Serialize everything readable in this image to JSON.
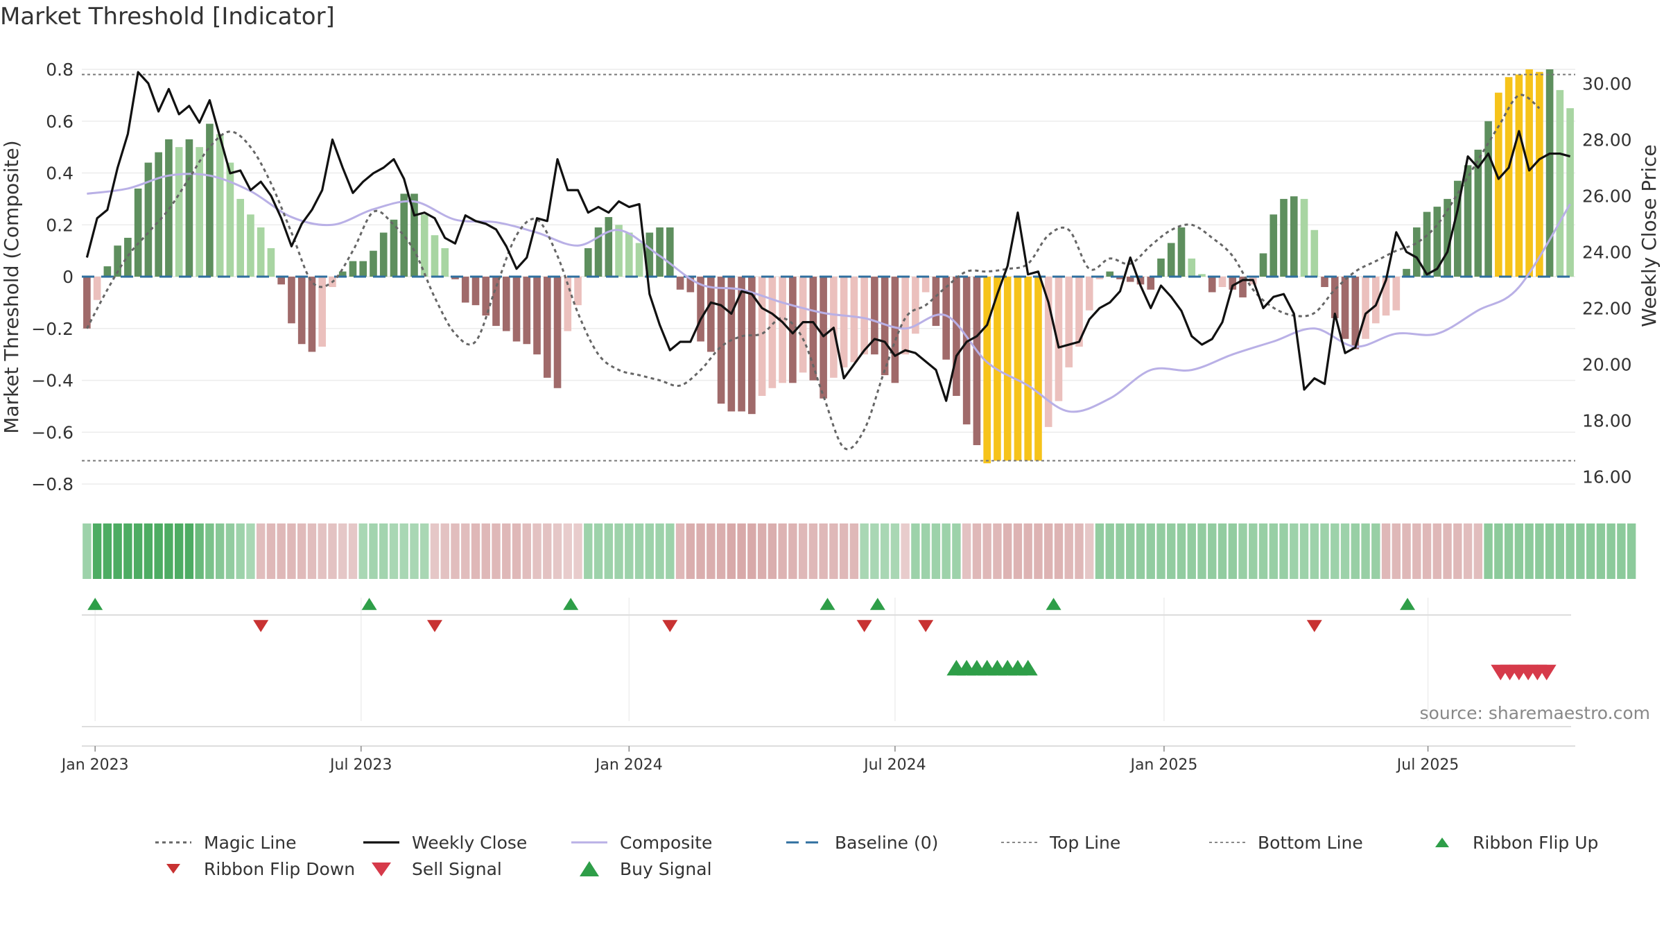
{
  "title": "Market Threshold [Indicator]",
  "source": "source: sharemaestro.com",
  "chart_data": {
    "type": "bar",
    "title": "Market Threshold [Indicator]",
    "ylabel_left": "Market Threshold (Composite)",
    "ylabel_right": "Weekly Close Price",
    "ylim_left": [
      -0.88,
      0.8
    ],
    "ylim_right": [
      15.0,
      30.5
    ],
    "yticks_left": [
      "0.8",
      "0.6",
      "0.4",
      "0.2",
      "0",
      "−0.2",
      "−0.4",
      "−0.6",
      "−0.8"
    ],
    "yticks_left_values": [
      0.8,
      0.6,
      0.4,
      0.2,
      0,
      -0.2,
      -0.4,
      -0.6,
      -0.8
    ],
    "yticks_right": [
      "30.00",
      "28.00",
      "26.00",
      "24.00",
      "22.00",
      "20.00",
      "18.00",
      "16.00"
    ],
    "yticks_right_values": [
      30,
      28,
      26,
      24,
      22,
      20,
      18,
      16
    ],
    "xticks": [
      "Jan 2023",
      "Jul 2023",
      "Jan 2024",
      "Jul 2024",
      "Jan 2025",
      "Jul 2025"
    ],
    "xticks_week_index": [
      0.8,
      26.8,
      53,
      79,
      105.3,
      131.1
    ],
    "top_line": 0.78,
    "bottom_line": -0.71,
    "grid": true,
    "legend_placement": "bottom",
    "colors": {
      "strong_pos": "#5e8f5e",
      "weak_pos": "#a8d5a2",
      "strong_neg": "#a06a6a",
      "weak_neg": "#ebc0bd",
      "extreme": "#f6c31a",
      "weekly_close": "#111111",
      "composite": "#b9b0e6",
      "magic": "#666666",
      "baseline": "#2f6f9f",
      "buy": "#2e9e48",
      "sell": "#d63a4a",
      "flip_down": "#c83232"
    },
    "histogram": [
      -0.2,
      -0.09,
      0.04,
      0.12,
      0.15,
      0.34,
      0.44,
      0.48,
      0.53,
      0.5,
      0.53,
      0.5,
      0.59,
      0.55,
      0.44,
      0.3,
      0.24,
      0.19,
      0.11,
      -0.03,
      -0.18,
      -0.26,
      -0.29,
      -0.27,
      -0.04,
      0.02,
      0.06,
      0.06,
      0.1,
      0.17,
      0.22,
      0.32,
      0.32,
      0.24,
      0.16,
      0.11,
      -0.01,
      -0.1,
      -0.11,
      -0.15,
      -0.19,
      -0.21,
      -0.25,
      -0.26,
      -0.3,
      -0.39,
      -0.43,
      -0.21,
      -0.11,
      0.11,
      0.19,
      0.23,
      0.2,
      0.17,
      0.13,
      0.17,
      0.19,
      0.19,
      -0.05,
      -0.06,
      -0.25,
      -0.29,
      -0.49,
      -0.52,
      -0.52,
      -0.53,
      -0.46,
      -0.43,
      -0.41,
      -0.41,
      -0.37,
      -0.4,
      -0.47,
      -0.39,
      -0.35,
      -0.33,
      -0.3,
      -0.3,
      -0.38,
      -0.41,
      -0.3,
      -0.22,
      -0.06,
      -0.19,
      -0.32,
      -0.46,
      -0.57,
      -0.65,
      -0.72,
      -0.71,
      -0.71,
      -0.71,
      -0.71,
      -0.71,
      -0.58,
      -0.48,
      -0.35,
      -0.27,
      -0.13,
      -0.01,
      0.02,
      -0.01,
      -0.02,
      -0.03,
      -0.05,
      0.07,
      0.13,
      0.19,
      0.07,
      0.01,
      -0.06,
      -0.04,
      -0.05,
      -0.08,
      -0.03,
      0.09,
      0.24,
      0.3,
      0.31,
      0.3,
      0.18,
      -0.04,
      -0.16,
      -0.24,
      -0.28,
      -0.24,
      -0.18,
      -0.15,
      -0.13,
      0.03,
      0.19,
      0.25,
      0.27,
      0.3,
      0.37,
      0.43,
      0.49,
      0.6,
      0.71,
      0.77,
      0.78,
      0.8,
      0.79,
      0.8,
      0.72,
      0.65
    ],
    "series": [
      {
        "name": "Magic Line",
        "axis": "left",
        "x": [
          0,
          2,
          4,
          6,
          8,
          10,
          12,
          14,
          16,
          18,
          20,
          22,
          24,
          26,
          28,
          30,
          32,
          34,
          36,
          38,
          40,
          42,
          44,
          46,
          48,
          50,
          52,
          54,
          56,
          58,
          60,
          62,
          64,
          66,
          68,
          70,
          72,
          74,
          76,
          78,
          80,
          82,
          84,
          86,
          88,
          90,
          92,
          94,
          96,
          98,
          100,
          102,
          104,
          106,
          108,
          110,
          112,
          114,
          116,
          118,
          120,
          122,
          124,
          126,
          128,
          130,
          132,
          134,
          136,
          138,
          140,
          142
        ],
        "values": [
          -0.2,
          -0.05,
          0.08,
          0.17,
          0.26,
          0.38,
          0.5,
          0.56,
          0.5,
          0.36,
          0.17,
          -0.02,
          -0.02,
          0.1,
          0.25,
          0.2,
          0.1,
          -0.08,
          -0.22,
          -0.25,
          -0.04,
          0.16,
          0.22,
          0.08,
          -0.14,
          -0.3,
          -0.36,
          -0.38,
          -0.4,
          -0.42,
          -0.36,
          -0.27,
          -0.23,
          -0.22,
          -0.16,
          -0.24,
          -0.46,
          -0.66,
          -0.59,
          -0.36,
          -0.16,
          -0.11,
          -0.04,
          0.02,
          0.02,
          0.03,
          0.05,
          0.16,
          0.18,
          0.03,
          0.07,
          0.05,
          0.12,
          0.18,
          0.2,
          0.15,
          0.08,
          -0.05,
          -0.12,
          -0.15,
          -0.14,
          -0.05,
          0.02,
          0.06,
          0.1,
          0.13,
          0.2,
          0.32,
          0.45,
          0.58,
          0.7,
          0.65
        ]
      },
      {
        "name": "Weekly Close",
        "axis": "right",
        "x": [
          0,
          1,
          2,
          3,
          4,
          5,
          6,
          7,
          8,
          9,
          10,
          11,
          12,
          13,
          14,
          15,
          16,
          17,
          18,
          19,
          20,
          21,
          22,
          23,
          24,
          25,
          26,
          27,
          28,
          29,
          30,
          31,
          32,
          33,
          34,
          35,
          36,
          37,
          38,
          39,
          40,
          41,
          42,
          43,
          44,
          45,
          46,
          47,
          48,
          49,
          50,
          51,
          52,
          53,
          54,
          55,
          56,
          57,
          58,
          59,
          60,
          61,
          62,
          63,
          64,
          65,
          66,
          67,
          68,
          69,
          70,
          71,
          72,
          73,
          74,
          75,
          76,
          77,
          78,
          79,
          80,
          81,
          82,
          83,
          84,
          85,
          86,
          87,
          88,
          89,
          90,
          91,
          92,
          93,
          94,
          95,
          96,
          97,
          98,
          99,
          100,
          101,
          102,
          103,
          104,
          105,
          106,
          107,
          108,
          109,
          110,
          111,
          112,
          113,
          114,
          115,
          116,
          117,
          118,
          119,
          120,
          121,
          122,
          123,
          124,
          125,
          126,
          127,
          128,
          129,
          130,
          131,
          132,
          133,
          134,
          135,
          136,
          137,
          138,
          139,
          140,
          141,
          142,
          143,
          144,
          145
        ],
        "values": [
          23.8,
          25.2,
          25.5,
          27.0,
          28.2,
          30.4,
          30.0,
          29.0,
          29.8,
          28.9,
          29.2,
          28.6,
          29.4,
          28.1,
          26.8,
          26.9,
          26.2,
          26.5,
          26.0,
          25.2,
          24.2,
          25.0,
          25.5,
          26.2,
          28.0,
          27.0,
          26.1,
          26.5,
          26.8,
          27.0,
          27.3,
          26.6,
          25.3,
          25.4,
          25.2,
          24.5,
          24.3,
          25.3,
          25.1,
          25.0,
          24.8,
          24.2,
          23.4,
          23.8,
          25.2,
          25.1,
          27.3,
          26.2,
          26.2,
          25.4,
          25.6,
          25.4,
          25.8,
          25.6,
          25.7,
          22.5,
          21.4,
          20.5,
          20.8,
          20.8,
          21.6,
          22.2,
          22.1,
          21.8,
          22.6,
          22.5,
          22.0,
          21.8,
          21.5,
          21.1,
          21.5,
          21.5,
          21.0,
          21.3,
          19.5,
          20.0,
          20.5,
          20.9,
          20.8,
          20.3,
          20.5,
          20.4,
          20.1,
          19.8,
          18.7,
          20.3,
          20.8,
          21.0,
          21.4,
          22.5,
          23.5,
          25.4,
          23.2,
          23.3,
          22.2,
          20.6,
          20.7,
          20.8,
          21.6,
          22.0,
          22.2,
          22.6,
          23.8,
          22.8,
          22.0,
          22.8,
          22.4,
          21.9,
          21.0,
          20.7,
          20.9,
          21.5,
          22.8,
          23.0,
          23.0,
          22.0,
          22.4,
          22.5,
          21.8,
          19.1,
          19.5,
          19.3,
          21.8,
          20.4,
          20.6,
          21.8,
          22.1,
          23.0,
          24.7,
          24.0,
          23.8,
          23.2,
          23.4,
          24.0,
          25.5,
          27.4,
          27.0,
          27.5,
          26.6,
          27.0,
          28.3,
          26.9,
          27.3,
          27.5,
          27.5,
          27.4
        ],
        "values_note": "read off right axis"
      },
      {
        "name": "Composite",
        "axis": "left",
        "x": [
          0,
          4,
          8,
          12,
          16,
          20,
          24,
          28,
          32,
          36,
          40,
          44,
          48,
          52,
          56,
          60,
          64,
          68,
          72,
          76,
          80,
          84,
          88,
          92,
          96,
          100,
          104,
          108,
          112,
          116,
          120,
          124,
          128,
          132,
          136,
          140,
          145
        ],
        "values": [
          0.32,
          0.34,
          0.39,
          0.39,
          0.33,
          0.23,
          0.2,
          0.26,
          0.29,
          0.22,
          0.21,
          0.17,
          0.12,
          0.18,
          0.08,
          -0.03,
          -0.05,
          -0.1,
          -0.14,
          -0.16,
          -0.2,
          -0.15,
          -0.33,
          -0.42,
          -0.52,
          -0.47,
          -0.36,
          -0.36,
          -0.3,
          -0.25,
          -0.2,
          -0.27,
          -0.22,
          -0.22,
          -0.13,
          -0.04,
          0.28
        ]
      },
      {
        "name": "Baseline (0)",
        "axis": "left",
        "values": [
          0
        ]
      },
      {
        "name": "Top Line",
        "axis": "left",
        "values": [
          0.78
        ]
      },
      {
        "name": "Bottom Line",
        "axis": "left",
        "values": [
          -0.71
        ]
      }
    ],
    "ribbon": [
      0.3,
      1,
      1,
      1,
      1,
      1,
      1,
      1,
      1,
      1,
      1,
      0.75,
      0.6,
      0.5,
      0.4,
      0.3,
      0.2,
      -0.25,
      -0.3,
      -0.3,
      -0.3,
      -0.28,
      -0.25,
      -0.2,
      -0.2,
      -0.15,
      -0.15,
      0.2,
      0.25,
      0.25,
      0.2,
      0.2,
      0.2,
      0.2,
      -0.15,
      -0.2,
      -0.25,
      -0.25,
      -0.3,
      -0.3,
      -0.3,
      -0.3,
      -0.3,
      -0.25,
      -0.2,
      -0.2,
      -0.15,
      -0.1,
      -0.1,
      0.3,
      0.3,
      0.3,
      0.3,
      0.3,
      0.3,
      0.3,
      0.3,
      0.3,
      -0.3,
      -0.4,
      -0.4,
      -0.4,
      -0.4,
      -0.45,
      -0.45,
      -0.45,
      -0.4,
      -0.4,
      -0.35,
      -0.35,
      -0.3,
      -0.3,
      -0.3,
      -0.3,
      -0.3,
      -0.3,
      0.2,
      0.2,
      0.2,
      0.2,
      -0.1,
      0.3,
      0.3,
      0.3,
      0.3,
      0.3,
      -0.2,
      -0.3,
      -0.3,
      -0.3,
      -0.35,
      -0.35,
      -0.35,
      -0.35,
      -0.35,
      -0.35,
      -0.3,
      -0.3,
      -0.15,
      0.4,
      0.4,
      0.4,
      0.4,
      0.4,
      0.4,
      0.4,
      0.4,
      0.4,
      0.4,
      0.4,
      0.4,
      0.4,
      0.4,
      0.35,
      0.35,
      0.35,
      0.35,
      0.35,
      0.3,
      0.3,
      0.3,
      0.3,
      0.3,
      0.3,
      0.35,
      0.35,
      0.35,
      -0.3,
      -0.3,
      -0.3,
      -0.3,
      -0.3,
      -0.3,
      -0.3,
      -0.3,
      -0.25,
      -0.25,
      0.45,
      0.45,
      0.45,
      0.45,
      0.45,
      0.45,
      0.45,
      0.45,
      0.45,
      0.45,
      0.45,
      0.45,
      0.45,
      0.45,
      0.45
    ],
    "ribbon_flip_up_weeks": [
      0.8,
      27.6,
      47.3,
      72.4,
      77.3,
      94.5,
      129.1
    ],
    "ribbon_flip_down_weeks": [
      17,
      34,
      57,
      76,
      82,
      120
    ],
    "buy_signal_weeks": [
      85,
      86,
      87,
      88,
      89,
      90,
      91,
      92
    ],
    "sell_signal_weeks": [
      138.2,
      139.1,
      140,
      140.9,
      141.8,
      142.7
    ],
    "legend": [
      "Magic Line",
      "Weekly Close",
      "Composite",
      "Baseline (0)",
      "Top Line",
      "Bottom Line",
      "Ribbon Flip Up",
      "Ribbon Flip Down",
      "Sell Signal",
      "Buy Signal"
    ]
  }
}
